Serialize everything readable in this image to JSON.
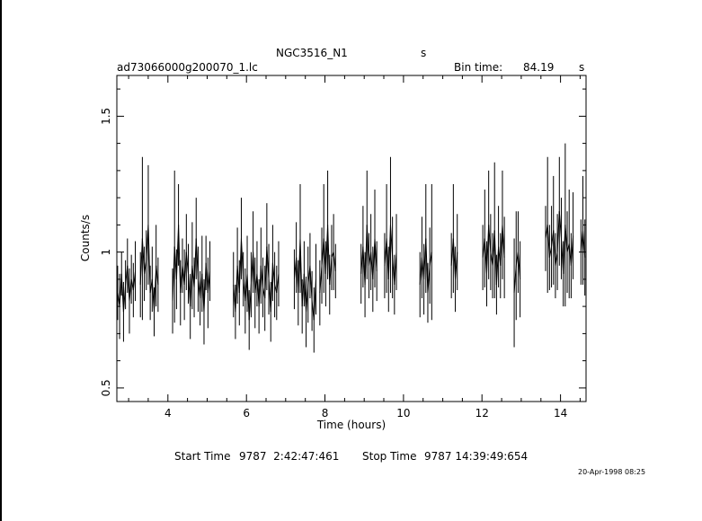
{
  "header": {
    "object": "NGC3516_N1",
    "object_unit": "s",
    "filename": "ad73066000g200070_1.lc",
    "bin_label": "Bin time:",
    "bin_value": "84.19",
    "bin_unit": "s"
  },
  "footer": {
    "start_label": "Start Time",
    "start_value": "9787  2:42:47:461",
    "stop_label": "Stop Time",
    "stop_value": "9787 14:39:49:654",
    "stamp": "20-Apr-1998 08:25"
  },
  "chart_data": {
    "type": "line",
    "title": "NGC3516_N1",
    "xlabel": "Time (hours)",
    "ylabel": "Counts/s",
    "xlim": [
      2.7,
      14.65
    ],
    "ylim": [
      0.45,
      1.65
    ],
    "xticks": [
      4,
      6,
      8,
      10,
      12,
      14
    ],
    "xtick_labels": [
      "4",
      "6",
      "8",
      "10",
      "12",
      "14"
    ],
    "yticks": [
      0.5,
      1.0,
      1.5
    ],
    "ytick_labels": [
      "0.5",
      "1",
      "1.5"
    ],
    "grid": false,
    "series": [
      {
        "x": [
          2.72,
          2.77,
          2.82,
          2.87,
          2.92,
          2.97,
          3.02,
          3.07,
          3.12,
          3.17,
          3.3,
          3.35,
          3.4,
          3.45,
          3.5,
          3.55,
          3.6,
          3.65,
          3.7,
          3.75,
          4.12,
          4.17,
          4.22,
          4.27,
          4.32,
          4.37,
          4.42,
          4.47,
          4.52,
          4.57,
          4.62,
          4.67,
          4.72,
          4.77,
          4.82,
          4.87,
          4.92,
          4.97,
          5.02,
          5.07,
          5.67,
          5.72,
          5.77,
          5.82,
          5.87,
          5.92,
          5.97,
          6.02,
          6.07,
          6.12,
          6.17,
          6.22,
          6.27,
          6.32,
          6.37,
          6.42,
          6.47,
          6.52,
          6.57,
          6.62,
          6.67,
          6.72,
          6.77,
          6.82,
          7.22,
          7.27,
          7.32,
          7.37,
          7.42,
          7.47,
          7.52,
          7.57,
          7.62,
          7.67,
          7.72,
          7.77,
          7.87,
          7.92,
          7.97,
          8.02,
          8.07,
          8.12,
          8.17,
          8.22,
          8.27,
          8.92,
          8.97,
          9.02,
          9.07,
          9.12,
          9.17,
          9.22,
          9.27,
          9.32,
          9.52,
          9.57,
          9.62,
          9.67,
          9.72,
          9.77,
          9.82,
          10.42,
          10.47,
          10.52,
          10.57,
          10.62,
          10.67,
          10.72,
          11.22,
          11.27,
          11.32,
          11.37,
          12.02,
          12.07,
          12.12,
          12.17,
          12.22,
          12.27,
          12.32,
          12.37,
          12.42,
          12.47,
          12.52,
          12.57,
          12.82,
          12.87,
          12.92,
          12.97,
          13.62,
          13.67,
          13.72,
          13.77,
          13.82,
          13.87,
          13.92,
          13.97,
          14.02,
          14.07,
          14.12,
          14.17,
          14.22,
          14.27,
          14.32,
          14.52,
          14.57,
          14.62
        ],
        "y": [
          0.85,
          0.8,
          0.92,
          0.78,
          0.88,
          0.95,
          0.82,
          0.9,
          0.86,
          0.93,
          0.88,
          1.05,
          0.92,
          0.97,
          1.1,
          0.85,
          0.9,
          0.78,
          0.95,
          0.88,
          0.82,
          1.02,
          0.9,
          1.1,
          0.85,
          0.95,
          0.88,
          1.0,
          0.92,
          0.8,
          0.95,
          0.87,
          1.05,
          0.9,
          0.83,
          0.92,
          0.78,
          0.96,
          0.85,
          0.93,
          0.88,
          0.78,
          0.95,
          0.85,
          1.05,
          0.9,
          0.82,
          0.92,
          0.75,
          0.88,
          1.0,
          0.85,
          0.92,
          0.8,
          0.95,
          0.87,
          0.83,
          1.02,
          0.9,
          0.78,
          0.96,
          0.88,
          0.85,
          0.92,
          0.9,
          0.98,
          0.85,
          1.05,
          0.8,
          0.92,
          0.78,
          0.88,
          0.95,
          0.82,
          0.75,
          0.9,
          0.85,
          0.95,
          1.05,
          0.92,
          1.1,
          0.88,
          0.98,
          1.0,
          0.93,
          0.92,
          1.02,
          0.88,
          1.1,
          0.95,
          1.0,
          0.9,
          1.05,
          0.93,
          0.95,
          1.05,
          0.9,
          1.1,
          0.98,
          0.88,
          1.0,
          0.88,
          0.98,
          0.9,
          1.05,
          0.85,
          0.95,
          1.0,
          0.95,
          1.05,
          0.9,
          1.0,
          0.98,
          1.05,
          0.92,
          1.1,
          1.0,
          0.95,
          1.08,
          0.88,
          1.02,
          0.95,
          1.1,
          0.98,
          0.85,
          0.95,
          1.0,
          0.9,
          1.05,
          1.1,
          0.98,
          1.02,
          1.08,
          0.95,
          1.0,
          1.15,
          1.05,
          0.92,
          1.1,
          1.0,
          1.03,
          0.95,
          1.06,
          1.0,
          1.08,
          0.98
        ],
        "yerr": [
          0.1,
          0.12,
          0.08,
          0.11,
          0.09,
          0.1,
          0.12,
          0.09,
          0.1,
          0.11,
          0.12,
          0.3,
          0.1,
          0.11,
          0.22,
          0.1,
          0.12,
          0.09,
          0.15,
          0.1,
          0.12,
          0.28,
          0.11,
          0.15,
          0.12,
          0.1,
          0.13,
          0.14,
          0.11,
          0.12,
          0.16,
          0.11,
          0.15,
          0.12,
          0.1,
          0.14,
          0.12,
          0.1,
          0.13,
          0.11,
          0.12,
          0.1,
          0.14,
          0.12,
          0.15,
          0.1,
          0.12,
          0.14,
          0.11,
          0.12,
          0.15,
          0.13,
          0.12,
          0.1,
          0.14,
          0.11,
          0.12,
          0.16,
          0.13,
          0.11,
          0.14,
          0.12,
          0.1,
          0.12,
          0.11,
          0.13,
          0.12,
          0.2,
          0.1,
          0.12,
          0.13,
          0.14,
          0.12,
          0.11,
          0.12,
          0.13,
          0.12,
          0.14,
          0.2,
          0.12,
          0.2,
          0.11,
          0.12,
          0.14,
          0.1,
          0.11,
          0.15,
          0.12,
          0.2,
          0.12,
          0.14,
          0.12,
          0.18,
          0.11,
          0.12,
          0.2,
          0.12,
          0.25,
          0.15,
          0.11,
          0.14,
          0.12,
          0.15,
          0.13,
          0.2,
          0.11,
          0.14,
          0.25,
          0.12,
          0.2,
          0.12,
          0.14,
          0.12,
          0.18,
          0.12,
          0.2,
          0.14,
          0.12,
          0.25,
          0.11,
          0.15,
          0.12,
          0.2,
          0.15,
          0.2,
          0.2,
          0.15,
          0.14,
          0.12,
          0.25,
          0.12,
          0.15,
          0.2,
          0.12,
          0.14,
          0.2,
          0.15,
          0.12,
          0.3,
          0.15,
          0.2,
          0.12,
          0.16,
          0.12,
          0.2,
          0.14
        ]
      }
    ]
  }
}
